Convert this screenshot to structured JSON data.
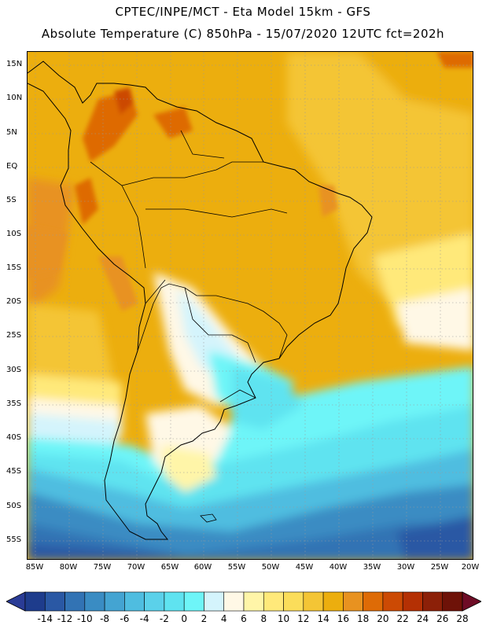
{
  "header": {
    "line1": "CPTEC/INPE/MCT -  Eta Model 15km - GFS",
    "line2": "Absolute Temperature (C) 850hPa - 15/07/2020 12UTC fct=202h"
  },
  "axes": {
    "lat_labels": [
      "15N",
      "10N",
      "5N",
      "EQ",
      "5S",
      "10S",
      "15S",
      "20S",
      "25S",
      "30S",
      "35S",
      "40S",
      "45S",
      "50S",
      "55S"
    ],
    "lon_labels": [
      "85W",
      "80W",
      "75W",
      "70W",
      "65W",
      "60W",
      "55W",
      "50W",
      "45W",
      "40W",
      "35W",
      "30W",
      "25W",
      "20W"
    ]
  },
  "colorbar": {
    "labels": [
      "-14",
      "-12",
      "-10",
      "-8",
      "-6",
      "-4",
      "-2",
      "0",
      "2",
      "4",
      "6",
      "8",
      "10",
      "12",
      "14",
      "16",
      "18",
      "20",
      "22",
      "24",
      "26",
      "28"
    ],
    "colors": [
      "#1e3c8c",
      "#2a58a4",
      "#3273b4",
      "#3a8cc3",
      "#44a4d2",
      "#4fbde0",
      "#5bd1ea",
      "#5fe3f0",
      "#6ef5f8",
      "#d4f4fc",
      "#fff8e6",
      "#fff5a8",
      "#ffe97a",
      "#fbdd5a",
      "#f4c535",
      "#ecae0e",
      "#e89220",
      "#de6b06",
      "#cc4a04",
      "#b43004",
      "#8c2008",
      "#6e1208"
    ],
    "under_color": "#2a3c96",
    "over_color": "#6e0c26"
  }
}
